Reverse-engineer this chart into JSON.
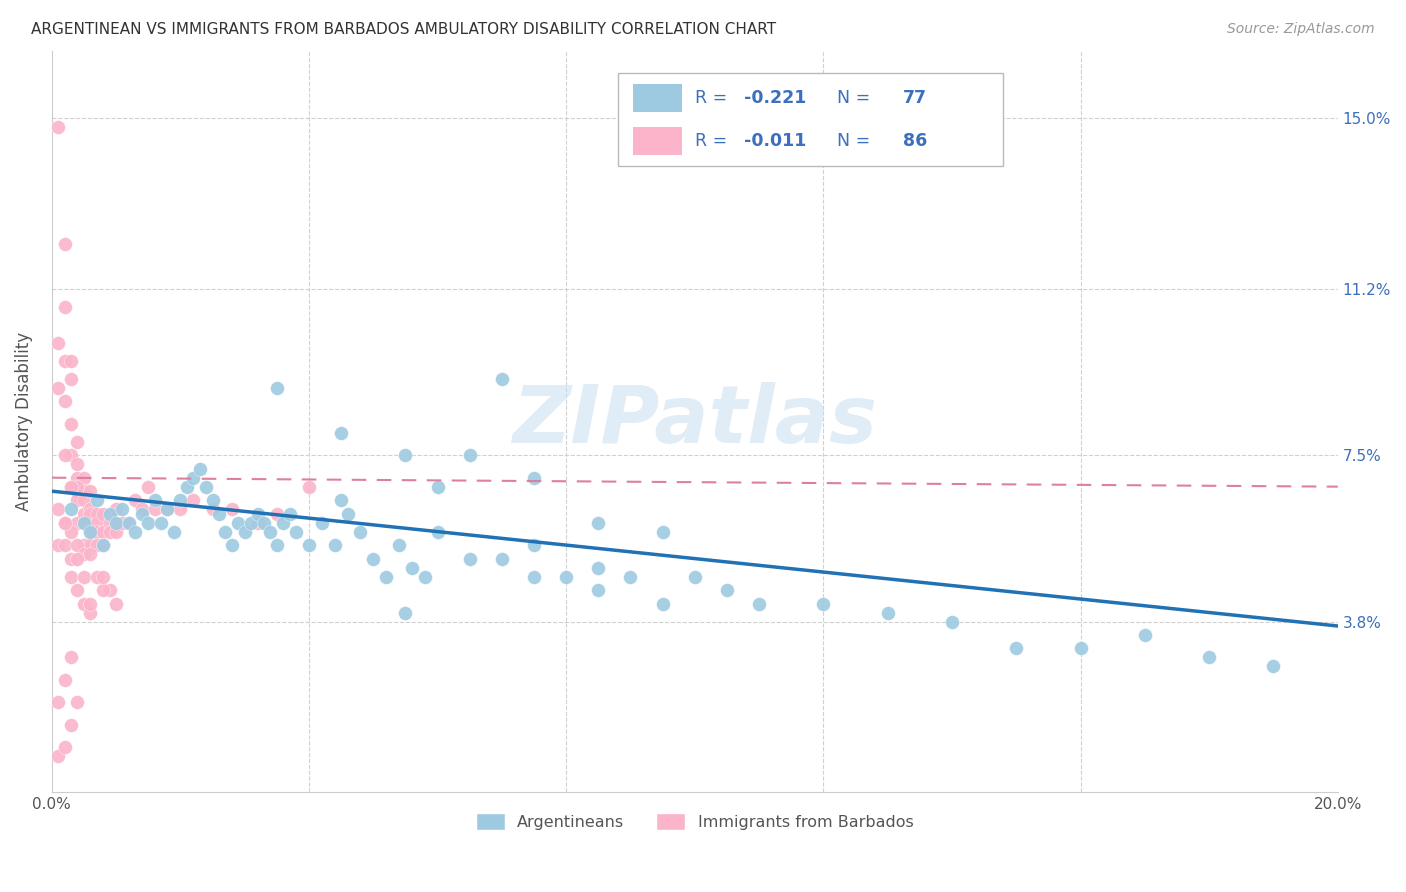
{
  "title": "ARGENTINEAN VS IMMIGRANTS FROM BARBADOS AMBULATORY DISABILITY CORRELATION CHART",
  "source": "Source: ZipAtlas.com",
  "ylabel": "Ambulatory Disability",
  "xlim": [
    0.0,
    0.2
  ],
  "ylim": [
    0.0,
    0.165
  ],
  "xticks": [
    0.0,
    0.04,
    0.08,
    0.12,
    0.16,
    0.2
  ],
  "xticklabels": [
    "0.0%",
    "",
    "",
    "",
    "",
    "20.0%"
  ],
  "ytick_positions": [
    0.038,
    0.075,
    0.112,
    0.15
  ],
  "right_ytick_labels": [
    "3.8%",
    "7.5%",
    "11.2%",
    "15.0%"
  ],
  "blue_color": "#9ecae1",
  "pink_color": "#fbb4c9",
  "blue_line_color": "#2171b5",
  "pink_line_color": "#de7fa0",
  "legend_text_color": "#3c6fbd",
  "watermark_text": "ZIPatlas",
  "watermark_color": "#c8def0",
  "grid_color": "#d0d0d0",
  "axis_color": "#cccccc",
  "title_color": "#333333",
  "source_color": "#999999",
  "blue_line_x0": 0.0,
  "blue_line_x1": 0.2,
  "blue_line_y0": 0.067,
  "blue_line_y1": 0.037,
  "pink_line_x0": 0.0,
  "pink_line_x1": 0.2,
  "pink_line_y0": 0.07,
  "pink_line_y1": 0.068,
  "blue_scatter_x": [
    0.003,
    0.005,
    0.006,
    0.007,
    0.008,
    0.009,
    0.01,
    0.011,
    0.012,
    0.013,
    0.014,
    0.015,
    0.016,
    0.017,
    0.018,
    0.019,
    0.02,
    0.021,
    0.022,
    0.023,
    0.024,
    0.025,
    0.026,
    0.027,
    0.028,
    0.029,
    0.03,
    0.031,
    0.032,
    0.033,
    0.034,
    0.035,
    0.036,
    0.037,
    0.038,
    0.04,
    0.042,
    0.044,
    0.046,
    0.048,
    0.05,
    0.052,
    0.054,
    0.056,
    0.058,
    0.06,
    0.065,
    0.07,
    0.075,
    0.08,
    0.085,
    0.09,
    0.095,
    0.1,
    0.105,
    0.11,
    0.12,
    0.13,
    0.14,
    0.15,
    0.16,
    0.17,
    0.18,
    0.19,
    0.035,
    0.045,
    0.055,
    0.065,
    0.07,
    0.075,
    0.085,
    0.095,
    0.045,
    0.055,
    0.06,
    0.075,
    0.085
  ],
  "blue_scatter_y": [
    0.063,
    0.06,
    0.058,
    0.065,
    0.055,
    0.062,
    0.06,
    0.063,
    0.06,
    0.058,
    0.062,
    0.06,
    0.065,
    0.06,
    0.063,
    0.058,
    0.065,
    0.068,
    0.07,
    0.072,
    0.068,
    0.065,
    0.062,
    0.058,
    0.055,
    0.06,
    0.058,
    0.06,
    0.062,
    0.06,
    0.058,
    0.055,
    0.06,
    0.062,
    0.058,
    0.055,
    0.06,
    0.055,
    0.062,
    0.058,
    0.052,
    0.048,
    0.055,
    0.05,
    0.048,
    0.058,
    0.052,
    0.052,
    0.055,
    0.048,
    0.05,
    0.048,
    0.042,
    0.048,
    0.045,
    0.042,
    0.042,
    0.04,
    0.038,
    0.032,
    0.032,
    0.035,
    0.03,
    0.028,
    0.09,
    0.08,
    0.075,
    0.075,
    0.092,
    0.07,
    0.06,
    0.058,
    0.065,
    0.04,
    0.068,
    0.048,
    0.045
  ],
  "pink_scatter_x": [
    0.001,
    0.001,
    0.001,
    0.001,
    0.002,
    0.002,
    0.002,
    0.002,
    0.002,
    0.003,
    0.003,
    0.003,
    0.003,
    0.003,
    0.004,
    0.004,
    0.004,
    0.004,
    0.004,
    0.004,
    0.005,
    0.005,
    0.005,
    0.005,
    0.005,
    0.005,
    0.006,
    0.006,
    0.006,
    0.006,
    0.006,
    0.007,
    0.007,
    0.007,
    0.007,
    0.008,
    0.008,
    0.008,
    0.009,
    0.009,
    0.01,
    0.01,
    0.011,
    0.012,
    0.013,
    0.014,
    0.015,
    0.016,
    0.018,
    0.02,
    0.022,
    0.025,
    0.028,
    0.032,
    0.035,
    0.04,
    0.001,
    0.002,
    0.003,
    0.003,
    0.004,
    0.005,
    0.006,
    0.001,
    0.002,
    0.003,
    0.004,
    0.005,
    0.001,
    0.002,
    0.003,
    0.004,
    0.003,
    0.005,
    0.007,
    0.009,
    0.002,
    0.006,
    0.008,
    0.01,
    0.004,
    0.006,
    0.002,
    0.004,
    0.008,
    0.003
  ],
  "pink_scatter_y": [
    0.148,
    0.1,
    0.09,
    0.063,
    0.122,
    0.108,
    0.096,
    0.087,
    0.06,
    0.096,
    0.092,
    0.082,
    0.075,
    0.068,
    0.078,
    0.073,
    0.07,
    0.067,
    0.065,
    0.06,
    0.07,
    0.067,
    0.065,
    0.062,
    0.06,
    0.055,
    0.067,
    0.063,
    0.062,
    0.058,
    0.055,
    0.062,
    0.06,
    0.058,
    0.055,
    0.062,
    0.058,
    0.055,
    0.06,
    0.058,
    0.063,
    0.058,
    0.06,
    0.06,
    0.065,
    0.063,
    0.068,
    0.063,
    0.063,
    0.063,
    0.065,
    0.063,
    0.063,
    0.06,
    0.062,
    0.068,
    0.055,
    0.055,
    0.058,
    0.052,
    0.055,
    0.053,
    0.053,
    0.02,
    0.025,
    0.03,
    0.045,
    0.042,
    0.008,
    0.01,
    0.015,
    0.02,
    0.048,
    0.048,
    0.048,
    0.045,
    0.06,
    0.04,
    0.045,
    0.042,
    0.052,
    0.042,
    0.075,
    0.068,
    0.048,
    0.068
  ]
}
